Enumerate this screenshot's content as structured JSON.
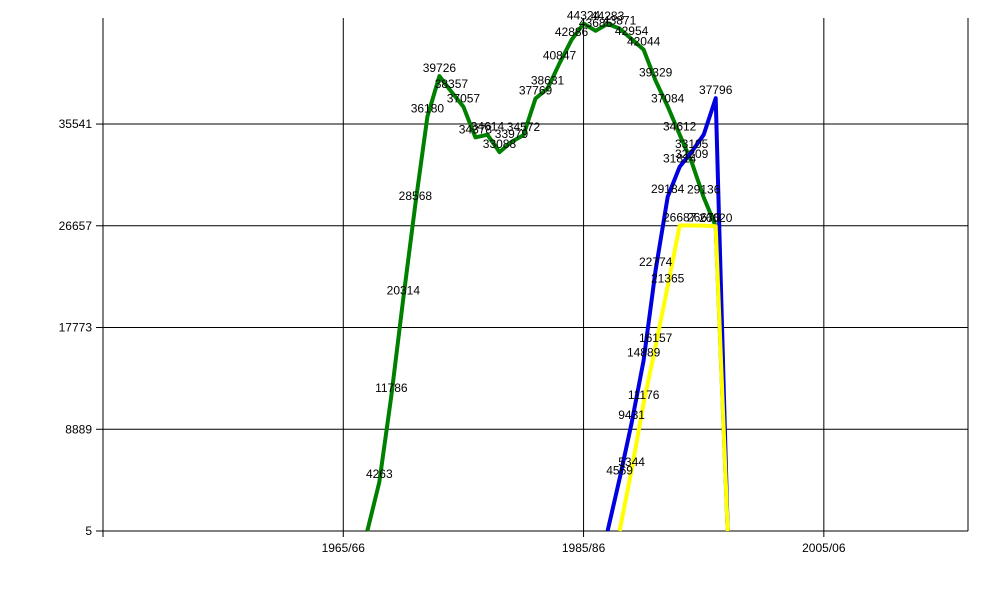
{
  "chart_data": {
    "type": "line",
    "title": "",
    "xlabel": "",
    "ylabel": "",
    "x_tick_labels": [
      "1965/66",
      "1985/86",
      "2005/06"
    ],
    "x_tick_years": [
      1965,
      1985,
      2005
    ],
    "xlim": [
      1945,
      2017
    ],
    "y_tick_labels": [
      "5",
      "8889",
      "17773",
      "26657",
      "35541"
    ],
    "ylim": [
      5,
      44800
    ],
    "grid": true,
    "legend": "none",
    "series": [
      {
        "color": "#008000",
        "points": [
          {
            "x": 1967,
            "y": 0
          },
          {
            "x": 1968,
            "y": 4263,
            "label": "4263"
          },
          {
            "x": 1969,
            "y": 11786,
            "label": "11786"
          },
          {
            "x": 1970,
            "y": 20314,
            "label": "20314"
          },
          {
            "x": 1971,
            "y": 28568,
            "label": "28568"
          },
          {
            "x": 1972,
            "y": 36180,
            "label": "36180"
          },
          {
            "x": 1973,
            "y": 39726,
            "label": "39726"
          },
          {
            "x": 1974,
            "y": 38357,
            "label": "38357"
          },
          {
            "x": 1975,
            "y": 37057,
            "label": "37057"
          },
          {
            "x": 1976,
            "y": 34378,
            "label": "34378"
          },
          {
            "x": 1977,
            "y": 34614,
            "label": "34614"
          },
          {
            "x": 1978,
            "y": 33088,
            "label": "33088"
          },
          {
            "x": 1979,
            "y": 33979,
            "label": "33979"
          },
          {
            "x": 1980,
            "y": 34572,
            "label": "34572"
          },
          {
            "x": 1981,
            "y": 37769,
            "label": "37769"
          },
          {
            "x": 1982,
            "y": 38631,
            "label": "38631"
          },
          {
            "x": 1983,
            "y": 40847,
            "label": "40847"
          },
          {
            "x": 1984,
            "y": 42886,
            "label": "42886"
          },
          {
            "x": 1985,
            "y": 44324,
            "label": "44324"
          },
          {
            "x": 1986,
            "y": 43685,
            "label": "43685"
          },
          {
            "x": 1987,
            "y": 44283,
            "label": "44283"
          },
          {
            "x": 1988,
            "y": 43871,
            "label": "43871"
          },
          {
            "x": 1989,
            "y": 42954,
            "label": "42954"
          },
          {
            "x": 1990,
            "y": 42044,
            "label": "42044"
          },
          {
            "x": 1991,
            "y": 39329,
            "label": "39329"
          },
          {
            "x": 1992,
            "y": 37084,
            "label": "37084"
          },
          {
            "x": 1993,
            "y": 34612,
            "label": "34612"
          },
          {
            "x": 1994,
            "y": 32209,
            "label": "32209"
          },
          {
            "x": 1995,
            "y": 29136,
            "label": "29136"
          },
          {
            "x": 1996,
            "y": 26620,
            "label": "26620"
          },
          {
            "x": 1997,
            "y": 0
          }
        ]
      },
      {
        "color": "#0000e0",
        "points": [
          {
            "x": 1987,
            "y": 0
          },
          {
            "x": 1988,
            "y": 4569,
            "label": "4569"
          },
          {
            "x": 1989,
            "y": 9431,
            "label": "9431"
          },
          {
            "x": 1990,
            "y": 14889,
            "label": "14889"
          },
          {
            "x": 1991,
            "y": 22774,
            "label": "22774"
          },
          {
            "x": 1992,
            "y": 29184,
            "label": "29184"
          },
          {
            "x": 1993,
            "y": 31814,
            "label": "31814"
          },
          {
            "x": 1994,
            "y": 33105,
            "label": "33105"
          },
          {
            "x": 1995,
            "y": 34612,
            "label": ""
          },
          {
            "x": 1996,
            "y": 37796,
            "label": "37796"
          },
          {
            "x": 1997,
            "y": 0
          }
        ]
      },
      {
        "color": "#ffff00",
        "points": [
          {
            "x": 1988,
            "y": 0
          },
          {
            "x": 1989,
            "y": 5344,
            "label": "5344"
          },
          {
            "x": 1990,
            "y": 11176,
            "label": "11176"
          },
          {
            "x": 1991,
            "y": 16157,
            "label": "16157"
          },
          {
            "x": 1992,
            "y": 21365,
            "label": "21365"
          },
          {
            "x": 1993,
            "y": 26687,
            "label": "26687"
          },
          {
            "x": 1995,
            "y": 26670,
            "label": "26670"
          },
          {
            "x": 1996,
            "y": 26620,
            "label": ""
          },
          {
            "x": 1997,
            "y": 0
          }
        ]
      }
    ]
  }
}
